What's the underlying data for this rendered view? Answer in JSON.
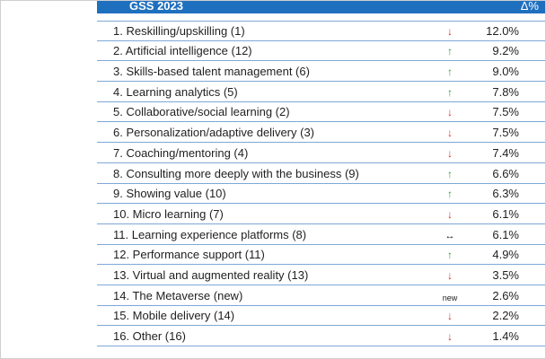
{
  "header": {
    "title": "GSS 2023",
    "delta_label": "Δ%"
  },
  "rows": [
    {
      "label": "1. Reskilling/upskilling (1)",
      "value": "12.0%",
      "delta": "↓",
      "trend": "down"
    },
    {
      "label": "2. Artificial intelligence (12)",
      "value": "9.2%",
      "delta": "↑",
      "trend": "up"
    },
    {
      "label": "3. Skills-based talent management (6)",
      "value": "9.0%",
      "delta": "↑",
      "trend": "up"
    },
    {
      "label": "4. Learning analytics (5)",
      "value": "7.8%",
      "delta": "↑",
      "trend": "up"
    },
    {
      "label": "5. Collaborative/social learning (2)",
      "value": "7.5%",
      "delta": "↓",
      "trend": "down"
    },
    {
      "label": "6. Personalization/adaptive delivery (3)",
      "value": "7.5%",
      "delta": "↓",
      "trend": "down"
    },
    {
      "label": "7. Coaching/mentoring (4)",
      "value": "7.4%",
      "delta": "↓",
      "trend": "down"
    },
    {
      "label": "8. Consulting more deeply with the business (9)",
      "value": "6.6%",
      "delta": "↑",
      "trend": "up"
    },
    {
      "label": "9. Showing value (10)",
      "value": "6.3%",
      "delta": "↑",
      "trend": "up"
    },
    {
      "label": "10. Micro learning (7)",
      "value": "6.1%",
      "delta": "↓",
      "trend": "down"
    },
    {
      "label": "11. Learning experience platforms (8)",
      "value": "6.1%",
      "delta": "↔",
      "trend": "same"
    },
    {
      "label": "12. Performance support (11)",
      "value": "4.9%",
      "delta": "↑",
      "trend": "up"
    },
    {
      "label": "13. Virtual and augmented reality (13)",
      "value": "3.5%",
      "delta": "↓",
      "trend": "down"
    },
    {
      "label": "14. The Metaverse (new)",
      "value": "2.6%",
      "delta": "new",
      "trend": "new"
    },
    {
      "label": "15. Mobile delivery (14)",
      "value": "2.2%",
      "delta": "↓",
      "trend": "down"
    },
    {
      "label": "16. Other (16)",
      "value": "1.4%",
      "delta": "↓",
      "trend": "down"
    }
  ],
  "colors": {
    "header": "#1f6fbf",
    "up": "#2f9a3a",
    "down": "#d62b2b",
    "rule": "#7ea8d6"
  }
}
